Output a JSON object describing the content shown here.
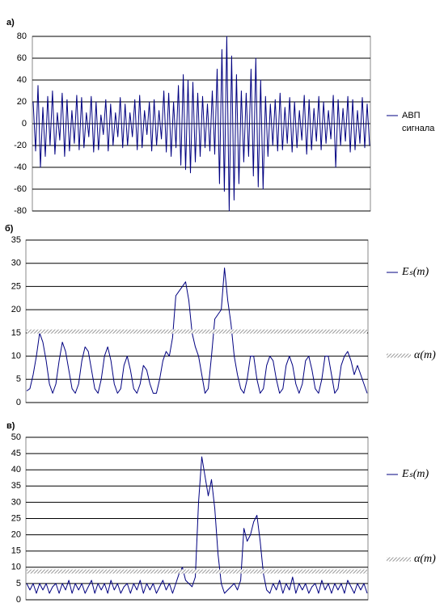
{
  "chart_data": [
    {
      "type": "line",
      "label": "а)",
      "ylim": [
        -80,
        80
      ],
      "yticks": [
        -80,
        -60,
        -40,
        -20,
        0,
        20,
        40,
        60,
        80
      ],
      "grid": true,
      "series": [
        {
          "name": "АВП сигнала",
          "color": "#000080",
          "values": [
            20,
            -25,
            35,
            -40,
            15,
            -30,
            25,
            -20,
            30,
            -28,
            10,
            -15,
            28,
            -30,
            22,
            -25,
            12,
            -18,
            26,
            -24,
            24,
            -22,
            10,
            -12,
            25,
            -26,
            20,
            -24,
            8,
            -10,
            22,
            -25,
            18,
            -20,
            10,
            -12,
            24,
            -22,
            18,
            -20,
            10,
            -12,
            22,
            -24,
            26,
            -22,
            12,
            -10,
            20,
            -25,
            22,
            -20,
            12,
            -14,
            30,
            -26,
            28,
            -30,
            20,
            -22,
            35,
            -38,
            45,
            -42,
            40,
            -45,
            38,
            -35,
            28,
            -30,
            25,
            -22,
            18,
            -25,
            30,
            -28,
            50,
            -55,
            68,
            -62,
            80,
            -80,
            62,
            -70,
            45,
            -55,
            30,
            -35,
            28,
            -30,
            50,
            -48,
            60,
            -58,
            40,
            -60,
            25,
            -30,
            18,
            -20,
            22,
            -25,
            28,
            -24,
            15,
            -18,
            24,
            -26,
            20,
            -22,
            12,
            -15,
            26,
            -28,
            22,
            -24,
            14,
            -16,
            25,
            -24,
            20,
            -18,
            12,
            -14,
            26,
            -40,
            22,
            -20,
            14,
            -16,
            25,
            -26,
            22,
            -24,
            12,
            -18,
            24,
            -22,
            18,
            -20
          ]
        }
      ]
    },
    {
      "type": "line",
      "label": "б)",
      "ylim": [
        0,
        35
      ],
      "yticks": [
        0,
        5,
        10,
        15,
        20,
        25,
        30,
        35
      ],
      "grid": true,
      "series": [
        {
          "name": "Eₛ(m)",
          "color": "#000080",
          "values": [
            2.5,
            3,
            6,
            10,
            15,
            13,
            9,
            4,
            2,
            4,
            9,
            13,
            11,
            7,
            3,
            2,
            4,
            9,
            12,
            11,
            7,
            3,
            2,
            5,
            10,
            12,
            9,
            4,
            2,
            3,
            8,
            10,
            7,
            3,
            2,
            4,
            8,
            7,
            4,
            2,
            2,
            5,
            9,
            11,
            10,
            14,
            23,
            24,
            25,
            26,
            22,
            15,
            12,
            10,
            6,
            2,
            3,
            10,
            18,
            19,
            20,
            29,
            22,
            17,
            10,
            6,
            3,
            2,
            5,
            10,
            10,
            5,
            2,
            3,
            8,
            10,
            9,
            5,
            2,
            3,
            8,
            10,
            8,
            4,
            2,
            4,
            9,
            10,
            7,
            3,
            2,
            5,
            10,
            10,
            6,
            2,
            3,
            8,
            10,
            11,
            9,
            6,
            8,
            6,
            4,
            2
          ]
        },
        {
          "name": "α(m)",
          "color": "#999999",
          "values": [
            15.3,
            15.3
          ]
        }
      ]
    },
    {
      "type": "line",
      "label": "в)",
      "ylim": [
        0,
        50
      ],
      "yticks": [
        0,
        5,
        10,
        15,
        20,
        25,
        30,
        35,
        40,
        45,
        50
      ],
      "grid": true,
      "series": [
        {
          "name": "Eₛ(m)",
          "color": "#000080",
          "values": [
            5,
            3,
            5,
            2,
            5,
            3,
            5,
            2,
            4,
            5,
            2,
            5,
            3,
            6,
            2,
            5,
            3,
            5,
            2,
            4,
            6,
            2,
            5,
            3,
            5,
            2,
            6,
            3,
            5,
            2,
            4,
            5,
            2,
            5,
            3,
            6,
            2,
            5,
            3,
            5,
            2,
            4,
            6,
            3,
            5,
            2,
            5,
            8,
            10,
            6,
            5,
            4,
            7,
            30,
            44,
            38,
            32,
            37,
            28,
            14,
            5,
            2,
            3,
            4,
            5,
            3,
            6,
            22,
            18,
            20,
            24,
            26,
            18,
            8,
            3,
            2,
            5,
            3,
            6,
            2,
            5,
            3,
            7,
            2,
            5,
            3,
            5,
            2,
            4,
            5,
            2,
            6,
            3,
            5,
            2,
            5,
            3,
            5,
            2,
            6,
            4,
            2,
            5,
            3,
            5,
            2
          ]
        },
        {
          "name": "α(m)",
          "color": "#999999",
          "values": [
            8.7,
            8.7
          ]
        }
      ]
    }
  ]
}
